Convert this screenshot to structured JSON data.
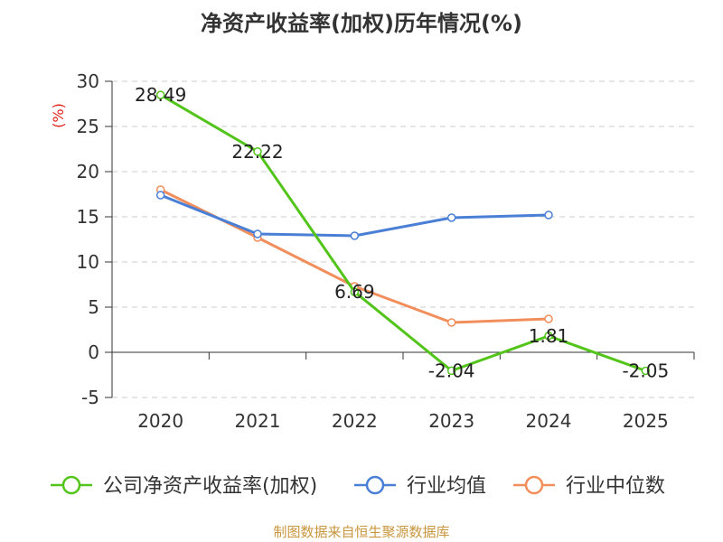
{
  "chart_data": {
    "type": "line",
    "title": "净资产收益率(加权)历年情况(%)",
    "ylabel": "(%)",
    "xlabel": "",
    "categories": [
      "2020",
      "2021",
      "2022",
      "2023",
      "2024",
      "2025"
    ],
    "ylim": [
      -5,
      30
    ],
    "yticks": [
      30,
      25,
      20,
      15,
      10,
      5,
      0,
      -5
    ],
    "grid": true,
    "legend_position": "bottom",
    "series": [
      {
        "name": "公司净资产收益率(加权)",
        "color": "#52c41a",
        "values": [
          28.49,
          22.22,
          6.69,
          -2.04,
          1.81,
          -2.05
        ],
        "labels": [
          "28.49",
          "22.22",
          "6.69",
          "-2.04",
          "1.81",
          "-2.05"
        ]
      },
      {
        "name": "行业均值",
        "color": "#4a7fd6",
        "values": [
          17.4,
          13.1,
          12.9,
          14.9,
          15.2,
          null
        ]
      },
      {
        "name": "行业中位数",
        "color": "#f28e5b",
        "values": [
          18.0,
          12.7,
          7.3,
          3.3,
          3.7,
          null
        ]
      }
    ]
  },
  "footer": {
    "source": "制图数据来自恒生聚源数据库"
  }
}
